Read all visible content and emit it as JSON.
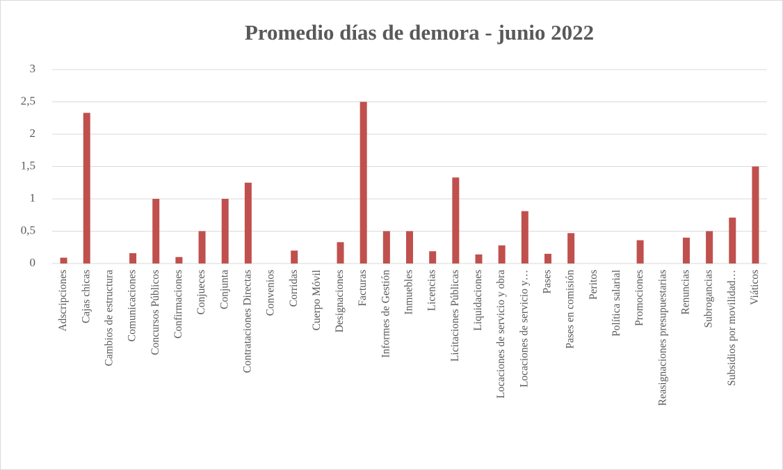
{
  "chart_data": {
    "type": "bar",
    "title": "Promedio días de demora - junio 2022",
    "categories": [
      "Adscripciones",
      "Cajas chicas",
      "Cambios de estructura",
      "Comunicaciones",
      "Concursos Públicos",
      "Confirmaciones",
      "Conjueces",
      "Conjunta",
      "Contrataciones Directas",
      "Convenios",
      "Corridas",
      "Cuerpo Móvil",
      "Designaciones",
      "Facturas",
      "Informes de Gestión",
      "Inmuebles",
      "Licencias",
      "Licitaciones Públicas",
      "Liquidaciones",
      "Locaciones de servicio y obra",
      "Locaciones de servicio y…",
      "Pases",
      "Pases en comisión",
      "Peritos",
      "Política salarial",
      "Promociones",
      "Reasignaciones presupuestarias",
      "Renuncias",
      "Subrogancias",
      "Subsidios por movilidad…",
      "Viáticos"
    ],
    "values": [
      0.09,
      2.33,
      0,
      0.16,
      1,
      0.1,
      0.5,
      1,
      1.25,
      0,
      0.2,
      0,
      0.33,
      2.5,
      0.5,
      0.5,
      0.19,
      1.33,
      0.14,
      0.28,
      0.81,
      0.15,
      0.47,
      0,
      0,
      0.36,
      0,
      0.4,
      0.5,
      0.71,
      1.5
    ],
    "color": "#c0504d",
    "ylim": [
      0,
      3
    ],
    "yticks": [
      0,
      {
        "value": 0.5,
        "label": "0,5"
      },
      1,
      {
        "value": 1.5,
        "label": "1,5"
      },
      2,
      {
        "value": 2.5,
        "label": "2,5"
      },
      3
    ],
    "grid": true
  }
}
